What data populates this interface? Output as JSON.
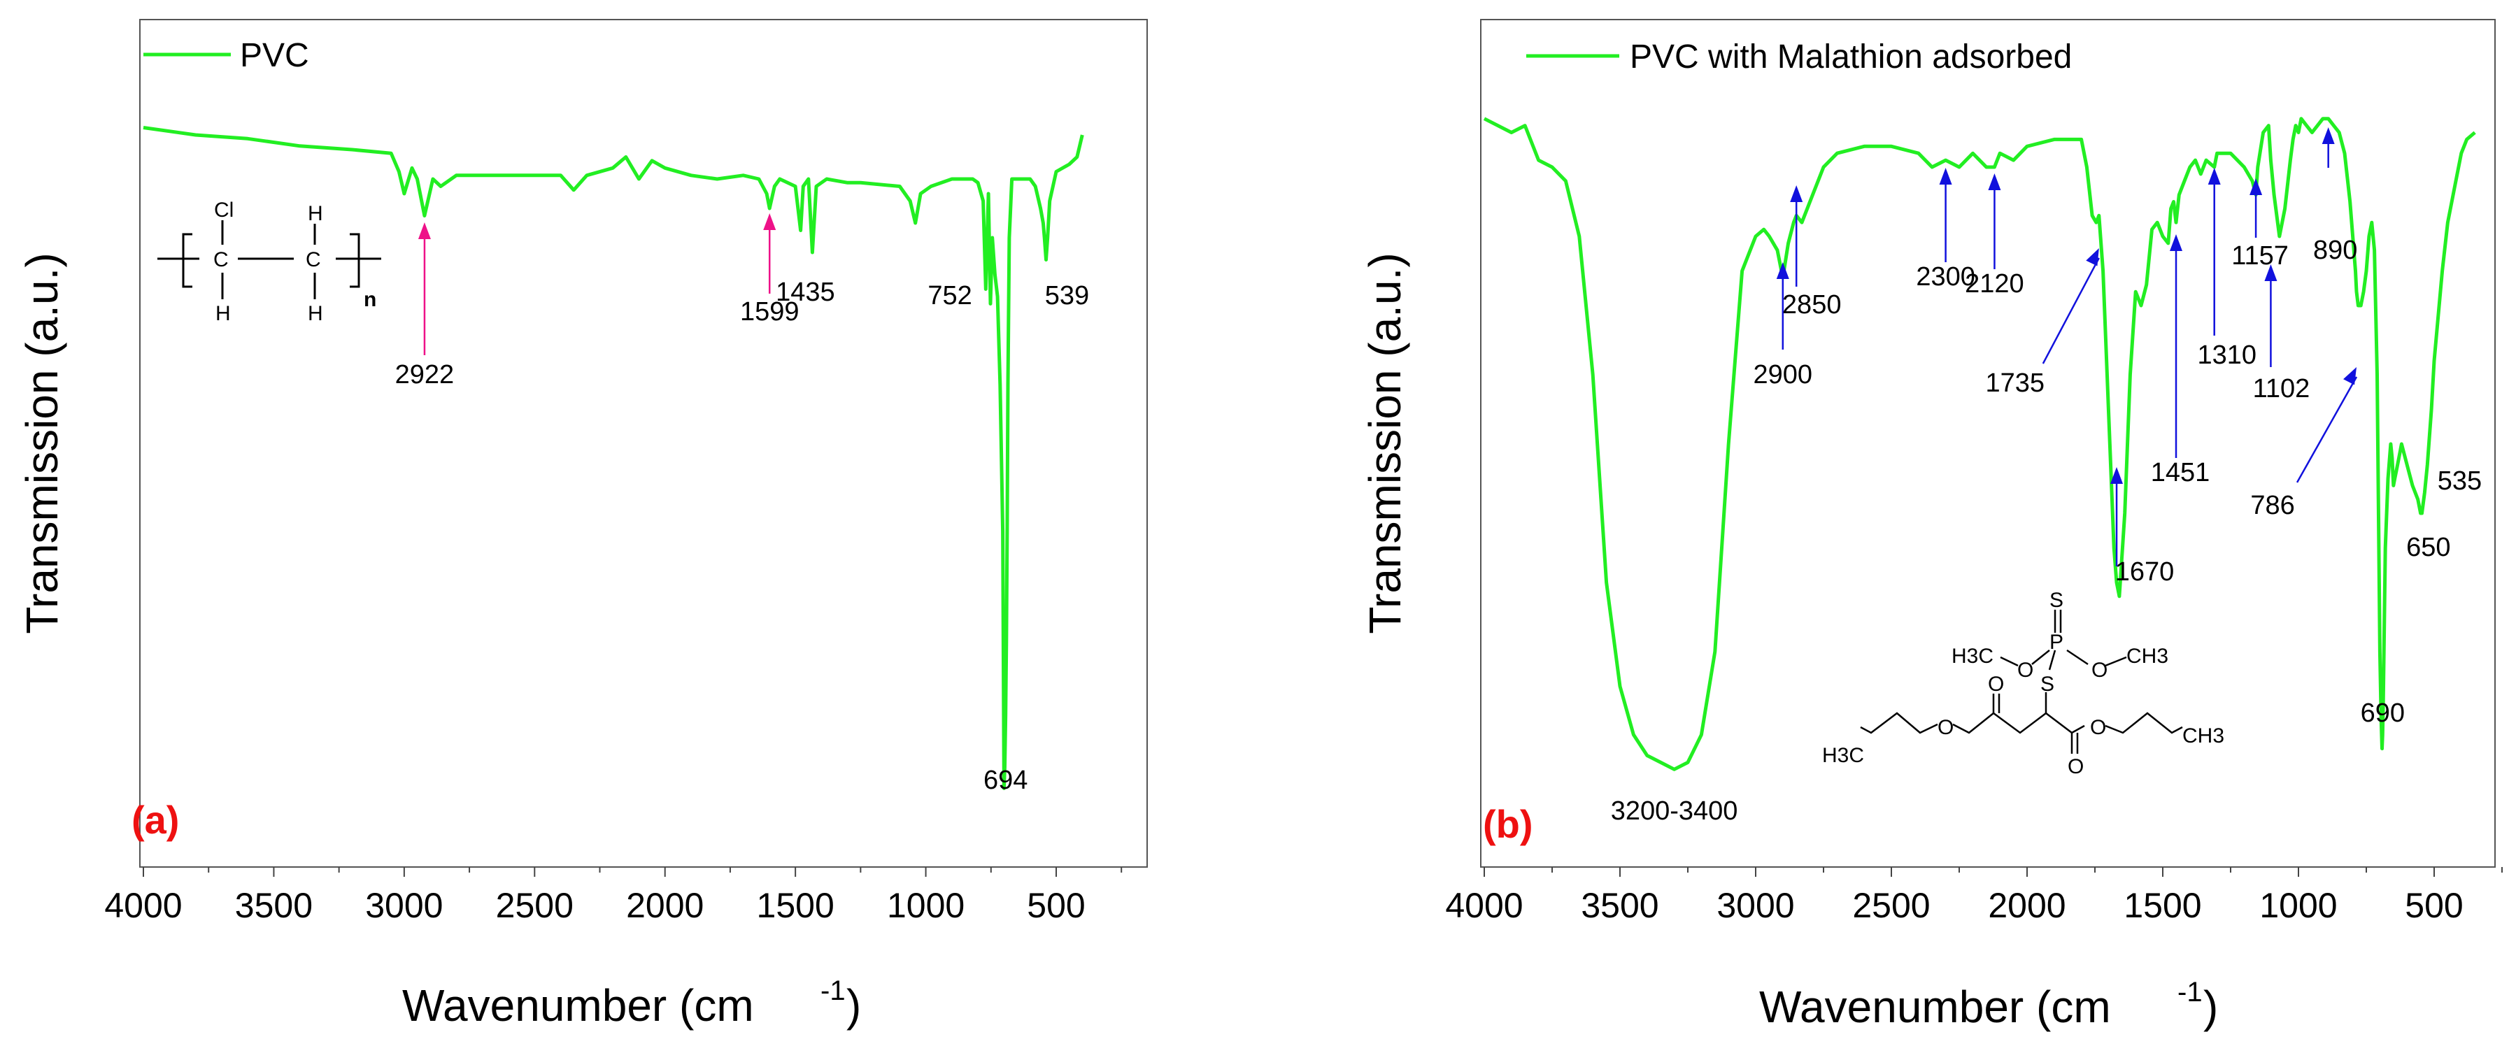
{
  "chart_data": [
    {
      "type": "line",
      "panel_label": "(a)",
      "series": [
        {
          "name": "PVC",
          "color": "#22ee22",
          "x": [
            4000,
            3800,
            3600,
            3400,
            3200,
            3050,
            3020,
            3000,
            2970,
            2950,
            2922,
            2890,
            2860,
            2800,
            2600,
            2400,
            2350,
            2300,
            2200,
            2150,
            2100,
            2050,
            2000,
            1900,
            1800,
            1700,
            1640,
            1610,
            1599,
            1580,
            1560,
            1500,
            1480,
            1470,
            1450,
            1435,
            1420,
            1380,
            1300,
            1250,
            1100,
            1060,
            1040,
            1020,
            980,
            900,
            820,
            800,
            780,
            770,
            760,
            752,
            745,
            735,
            725,
            715,
            705,
            700,
            697,
            694,
            691,
            688,
            685,
            680,
            670,
            650,
            600,
            580,
            560,
            550,
            545,
            539,
            533,
            525,
            500,
            450,
            420,
            400
          ],
          "y": [
            95,
            94,
            93.5,
            92.5,
            92,
            91.5,
            89,
            86,
            89.5,
            88,
            83,
            88,
            87,
            88.5,
            88.5,
            88.5,
            86.5,
            88.5,
            89.5,
            91,
            88,
            90.5,
            89.5,
            88.5,
            88,
            88.5,
            88,
            86,
            84,
            87,
            88,
            87,
            81,
            87,
            88,
            78,
            87,
            88,
            87.5,
            87.5,
            87,
            85,
            82,
            86,
            87,
            88,
            88,
            87.5,
            85,
            73,
            86,
            71,
            80,
            75,
            72,
            60,
            40,
            5,
            8,
            15,
            25,
            40,
            60,
            80,
            88,
            88,
            88,
            87,
            84,
            82,
            80,
            77,
            80,
            85,
            89,
            90,
            91,
            94
          ]
        }
      ],
      "x_ticks": [
        "4000",
        "3500",
        "3000",
        "2500",
        "2000",
        "1500",
        "1000",
        "500"
      ],
      "xlim": [
        4000,
        300
      ],
      "ylim": [
        0,
        100
      ],
      "ylabel": "Transmission (a.u.)",
      "xlabel": "Wavenumber (cm",
      "xlabel_sup": "-1",
      "xlabel_end": ")",
      "annotations": [
        {
          "text": "2922",
          "x": 2922,
          "arrow": true,
          "arrow_color": "#ee1188"
        },
        {
          "text": "1599",
          "x": 1599,
          "arrow": true,
          "arrow_color": "#ee1188"
        },
        {
          "text": "1435",
          "x": 1435,
          "arrow": false
        },
        {
          "text": "752",
          "x": 752,
          "arrow": false
        },
        {
          "text": "539",
          "x": 539,
          "arrow": false
        },
        {
          "text": "694",
          "x": 694,
          "arrow": false
        }
      ],
      "structure": {
        "top_label": "Cl",
        "atom1": "C",
        "atom2": "C",
        "h_label": "H",
        "subscript": "n"
      }
    },
    {
      "type": "line",
      "panel_label": "(b)",
      "series": [
        {
          "name": "PVC with Malathion adsorbed",
          "color": "#22ee22",
          "x": [
            4000,
            3900,
            3850,
            3800,
            3750,
            3700,
            3650,
            3600,
            3550,
            3500,
            3450,
            3400,
            3350,
            3300,
            3250,
            3200,
            3150,
            3100,
            3050,
            3000,
            2970,
            2950,
            2920,
            2900,
            2880,
            2860,
            2850,
            2830,
            2800,
            2750,
            2700,
            2600,
            2500,
            2400,
            2350,
            2300,
            2250,
            2200,
            2150,
            2120,
            2100,
            2050,
            2000,
            1900,
            1800,
            1780,
            1760,
            1745,
            1735,
            1720,
            1700,
            1680,
            1670,
            1660,
            1640,
            1620,
            1600,
            1580,
            1560,
            1540,
            1520,
            1500,
            1480,
            1470,
            1460,
            1451,
            1440,
            1420,
            1400,
            1380,
            1360,
            1340,
            1310,
            1300,
            1250,
            1200,
            1170,
            1157,
            1150,
            1130,
            1110,
            1102,
            1090,
            1070,
            1050,
            1030,
            1020,
            1010,
            1000,
            990,
            970,
            950,
            930,
            910,
            890,
            870,
            850,
            830,
            810,
            800,
            790,
            786,
            780,
            770,
            760,
            750,
            740,
            730,
            720,
            710,
            700,
            695,
            692,
            690,
            688,
            685,
            680,
            670,
            660,
            655,
            650,
            645,
            640,
            630,
            620,
            600,
            580,
            560,
            550,
            545,
            535,
            525,
            510,
            500,
            470,
            450,
            420,
            400,
            380,
            350
          ],
          "y": [
            97,
            95,
            96,
            91,
            90,
            88,
            80,
            60,
            30,
            15,
            8,
            5,
            4,
            3,
            4,
            8,
            20,
            50,
            75,
            80,
            81,
            80,
            78,
            74,
            79,
            82,
            83,
            82,
            85,
            90,
            92,
            93,
            93,
            92,
            90,
            91,
            90,
            92,
            90,
            90,
            92,
            91,
            93,
            94,
            94,
            90,
            83,
            82,
            83,
            75,
            55,
            35,
            30,
            28,
            40,
            60,
            72,
            70,
            73,
            81,
            82,
            80,
            79,
            84,
            85,
            82,
            86,
            88,
            90,
            91,
            89,
            91,
            90,
            92,
            92,
            90,
            88,
            86,
            90,
            95,
            96,
            91,
            86,
            80,
            84,
            91,
            94,
            96,
            95,
            97,
            96,
            95,
            96,
            97,
            97,
            96,
            95,
            92,
            85,
            80,
            75,
            72,
            70,
            70,
            72,
            75,
            80,
            82,
            78,
            60,
            20,
            10,
            6,
            8,
            12,
            20,
            35,
            45,
            50,
            48,
            44,
            45,
            46,
            48,
            50,
            47,
            44,
            42,
            40,
            40,
            43,
            47,
            55,
            62,
            75,
            82,
            88,
            92,
            94,
            95
          ]
        }
      ],
      "x_ticks": [
        "4000",
        "3500",
        "3000",
        "2500",
        "2000",
        "1500",
        "1000",
        "500"
      ],
      "xlim": [
        4000,
        300
      ],
      "ylim": [
        0,
        100
      ],
      "ylabel": "Transmission (a.u.)",
      "xlabel": "Wavenumber (cm",
      "xlabel_sup": "-1",
      "xlabel_end": ")",
      "annotations": [
        {
          "text": "2900",
          "x": 2900,
          "arrow": true
        },
        {
          "text": "2850",
          "x": 2850,
          "arrow": true
        },
        {
          "text": "2300",
          "x": 2300,
          "arrow": true
        },
        {
          "text": "2120",
          "x": 2120,
          "arrow": true
        },
        {
          "text": "1735",
          "x": 1735,
          "arrow": true
        },
        {
          "text": "1670",
          "x": 1670,
          "arrow": true
        },
        {
          "text": "1451",
          "x": 1451,
          "arrow": true
        },
        {
          "text": "1310",
          "x": 1310,
          "arrow": true
        },
        {
          "text": "1157",
          "x": 1157,
          "arrow": true
        },
        {
          "text": "1102",
          "x": 1102,
          "arrow": true
        },
        {
          "text": "890",
          "x": 890,
          "arrow": true
        },
        {
          "text": "786",
          "x": 786,
          "arrow": true
        },
        {
          "text": "690",
          "x": 690,
          "arrow": false
        },
        {
          "text": "650",
          "x": 650,
          "arrow": false
        },
        {
          "text": "535",
          "x": 535,
          "arrow": false
        },
        {
          "text": "3200-3400",
          "x": 3300,
          "arrow": false
        }
      ],
      "structure": {
        "s_double": "S",
        "p": "P",
        "s_link": "S",
        "o1": "O",
        "o2": "O",
        "ch3_left": "H3C",
        "ch3_right": "CH3",
        "o_carbonyl1": "O",
        "o_carbonyl2": "O",
        "o_ester1": "O",
        "o_ester2": "O",
        "h3c_ester": "H3C",
        "ch3_ester": "CH3"
      }
    }
  ],
  "arrow_color_b": "#1111dd",
  "panel_label_color": "#ee1111"
}
